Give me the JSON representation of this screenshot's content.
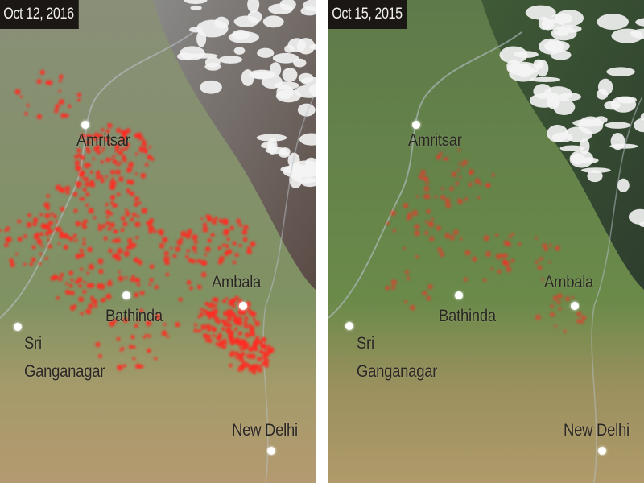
{
  "panels": [
    {
      "date": "Oct 12, 2016",
      "cities": {
        "amritsar": "Amritsar",
        "bathinda": "Bathinda",
        "sri": "Sri",
        "ganganagar": "Ganganagar",
        "ambala": "Ambala",
        "new_delhi": "New Delhi"
      }
    },
    {
      "date": "Oct 15, 2015",
      "cities": {
        "amritsar": "Amritsar",
        "bathinda": "Bathinda",
        "sri": "Sri",
        "ganganagar": "Ganganagar",
        "ambala": "Ambala",
        "new_delhi": "New Delhi"
      }
    }
  ],
  "colors": {
    "fire": "#ff2a22",
    "label_bg": "#1a1714",
    "terrain_2016": "#7f8f62",
    "terrain_2015": "#5f7f45"
  }
}
